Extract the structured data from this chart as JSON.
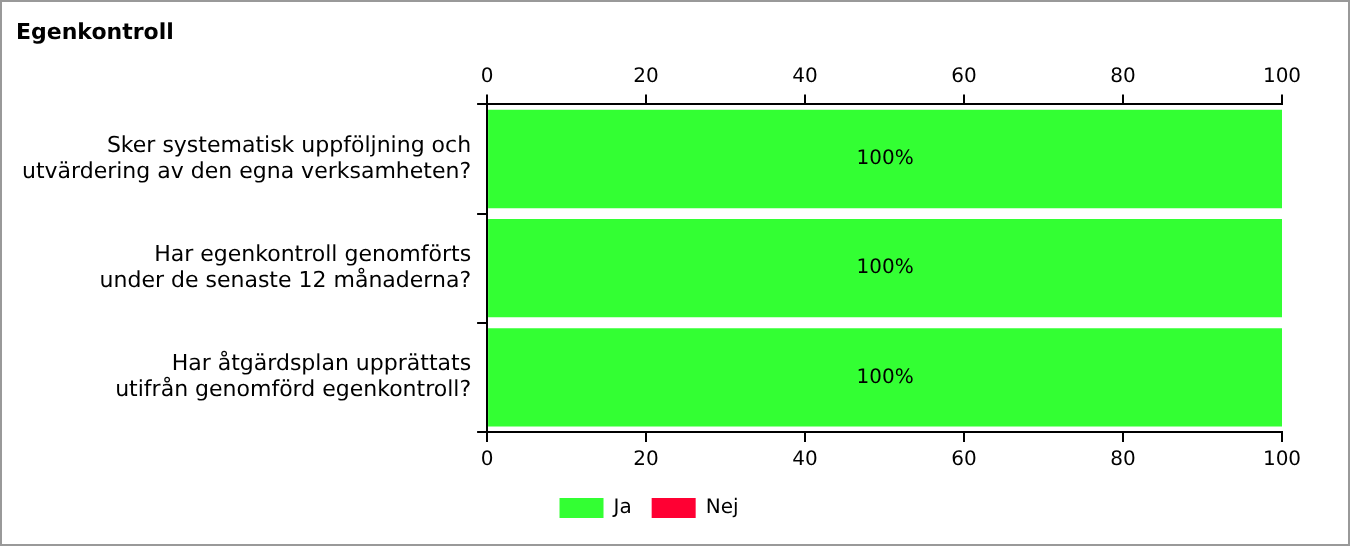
{
  "chart_data": {
    "type": "bar",
    "title": "Egenkontroll",
    "orientation": "horizontal",
    "stacked": true,
    "categories": [
      "Sker systematisk uppföljning och\nutvärdering av den egna verksamheten?",
      "Har egenkontroll genomförts\nunder de senaste 12 månaderna?",
      "Har åtgärdsplan upprättats\nutifrån genomförd egenkontroll?"
    ],
    "series": [
      {
        "name": "Ja",
        "color": "#33ff33",
        "values": [
          100,
          100,
          100
        ],
        "value_labels": [
          "100%",
          "100%",
          "100%"
        ]
      },
      {
        "name": "Nej",
        "color": "#ff0033",
        "values": [
          0,
          0,
          0
        ]
      }
    ],
    "xlim": [
      0,
      100
    ],
    "xticks": [
      0,
      20,
      40,
      60,
      80,
      100
    ],
    "x2lim": [
      0,
      100
    ],
    "x2ticks": [
      0,
      20,
      40,
      60,
      80,
      100
    ],
    "grid": false,
    "legend": "bottom"
  }
}
